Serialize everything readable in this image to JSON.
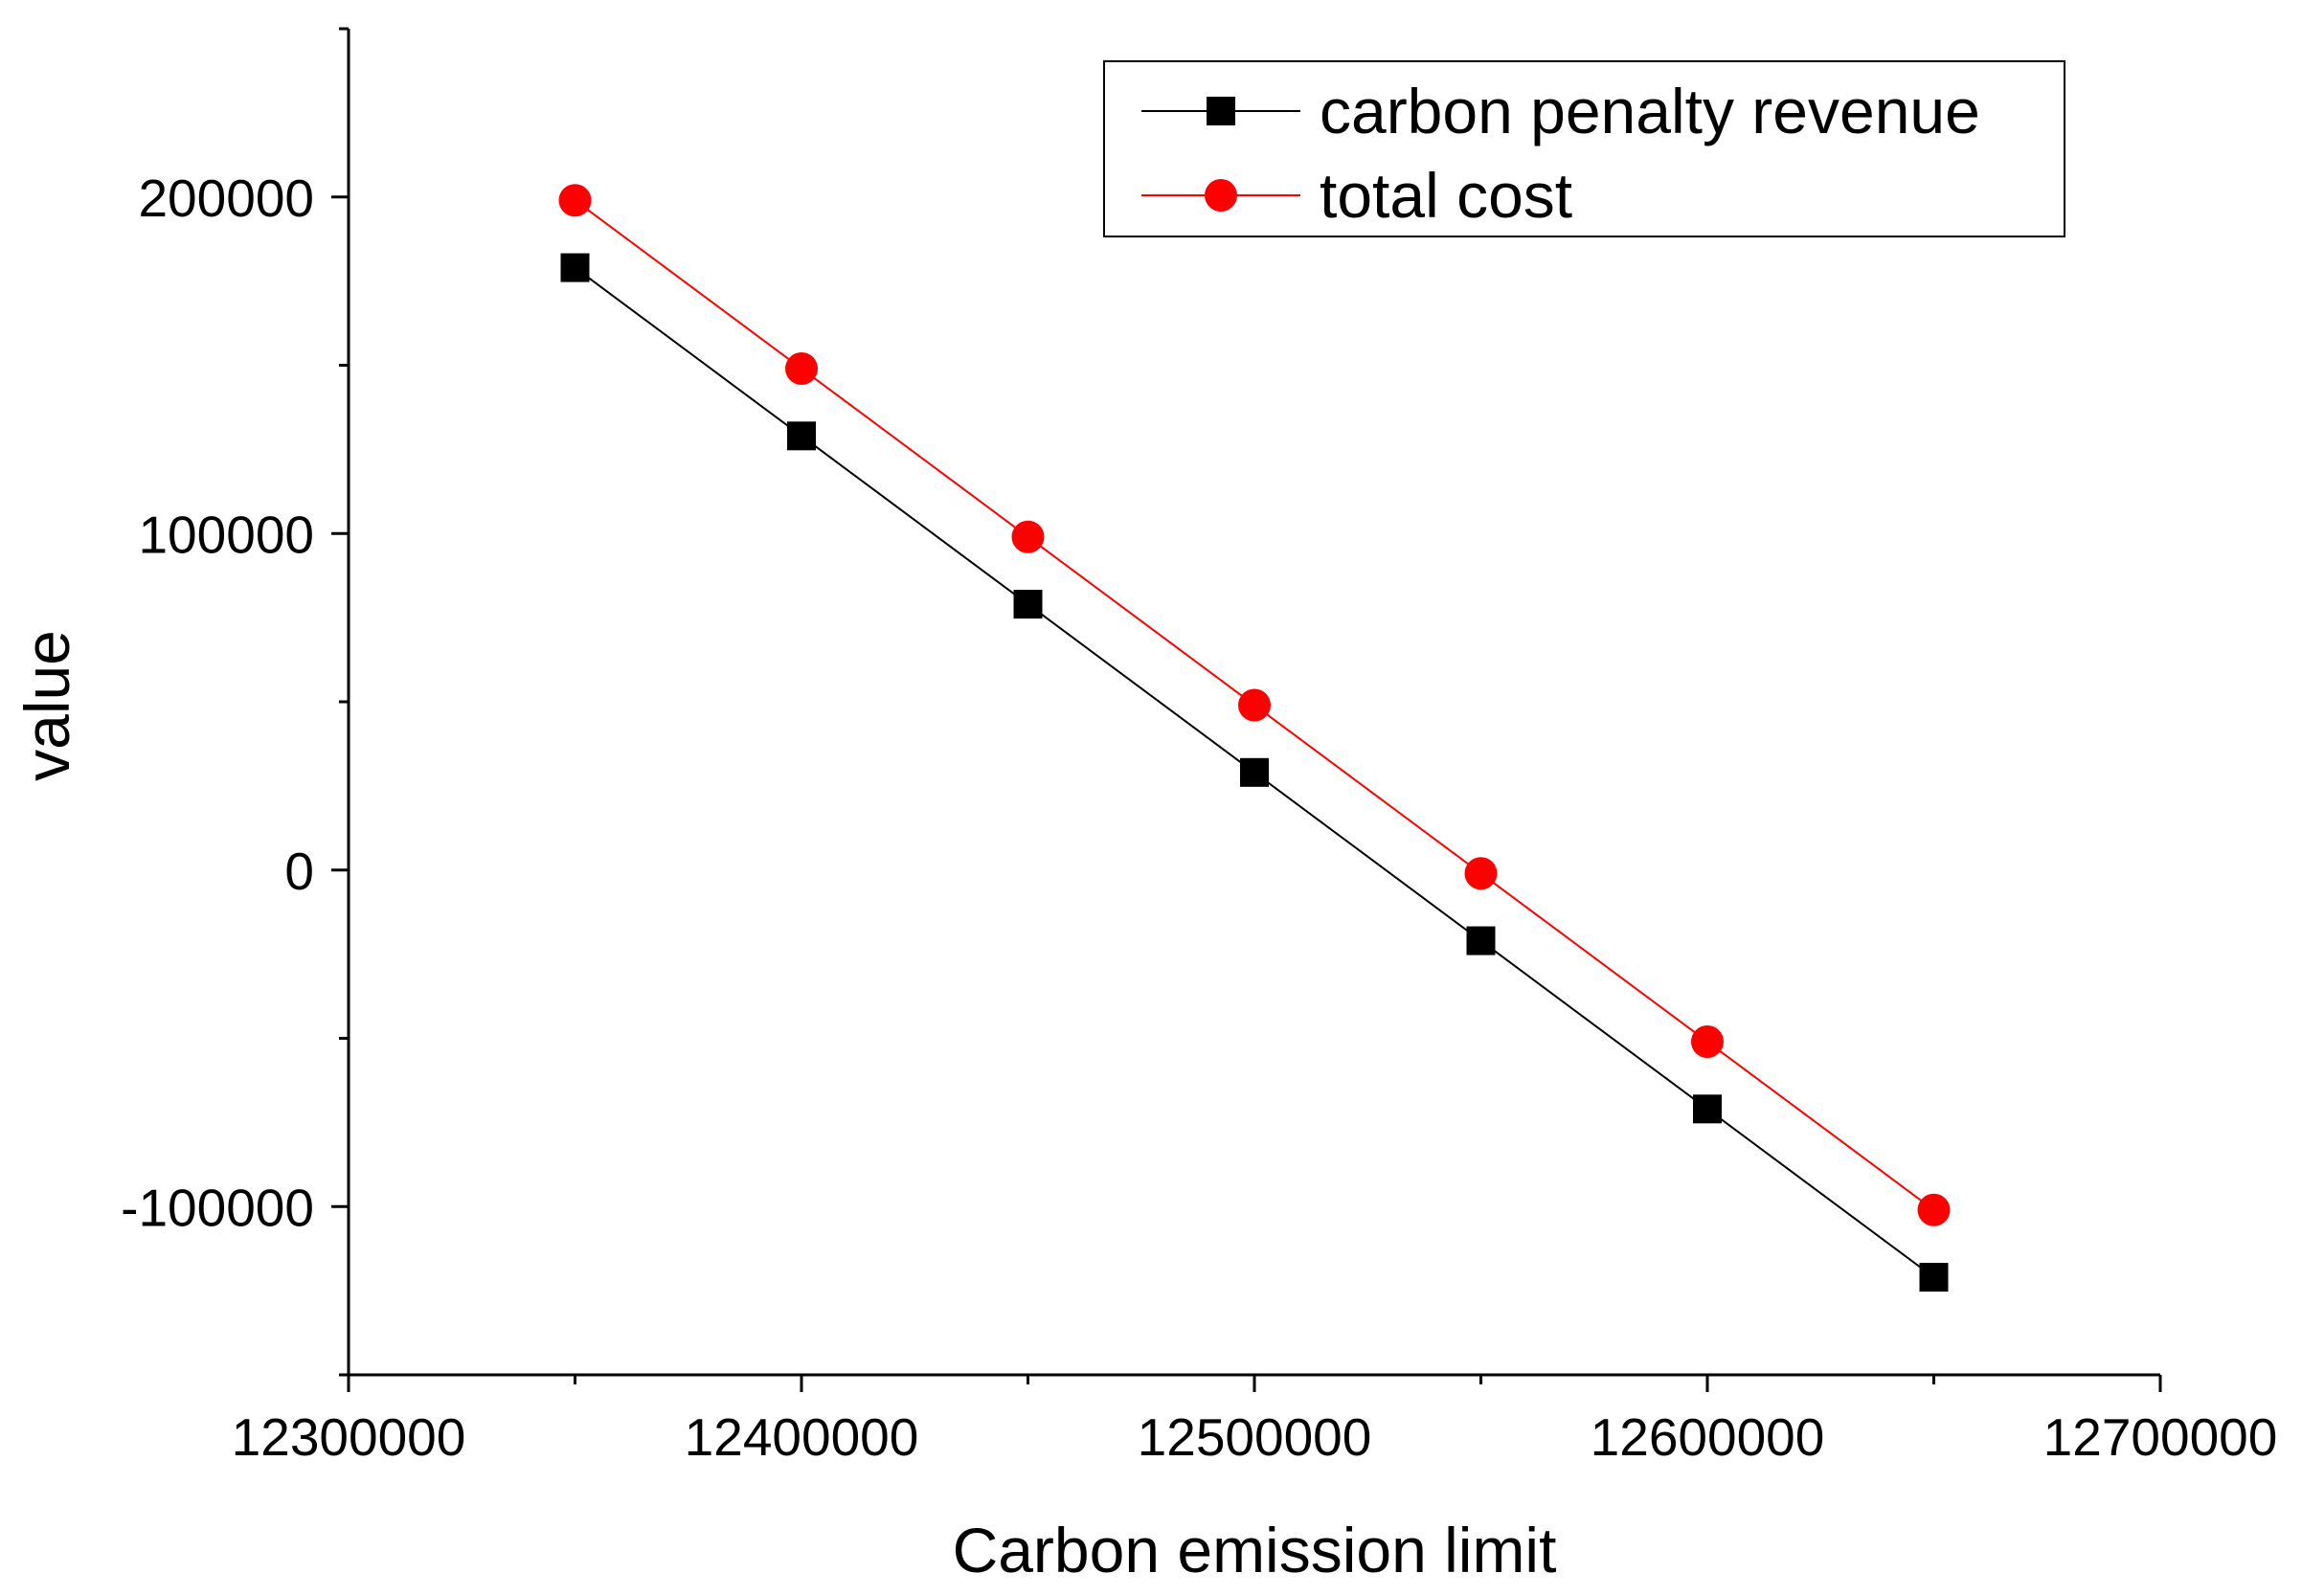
{
  "chart_data": {
    "type": "line",
    "title": "",
    "xlabel": "Carbon emission limit",
    "ylabel": "value",
    "xlim": [
      12300000,
      12700000
    ],
    "ylim": [
      -150000,
      250000
    ],
    "grid": false,
    "legend_position": "top-right",
    "x_ticks": [
      12300000,
      12400000,
      12500000,
      12600000,
      12700000
    ],
    "x_tick_labels": [
      "12300000",
      "12400000",
      "12500000",
      "12600000",
      "12700000"
    ],
    "x_minor_ticks": [
      12350000,
      12450000,
      12550000,
      12650000
    ],
    "y_ticks": [
      -100000,
      0,
      100000,
      200000
    ],
    "y_tick_labels": [
      "-100000",
      "0",
      "100000",
      "200000"
    ],
    "y_minor_ticks": [
      -150000,
      -50000,
      50000,
      150000,
      250000
    ],
    "x": [
      12350000,
      12400000,
      12450000,
      12500000,
      12550000,
      12600000,
      12650000
    ],
    "series": [
      {
        "name": "carbon penalty revenue",
        "color": "#000000",
        "marker": "square",
        "values": [
          179000,
          129000,
          79000,
          29000,
          -21000,
          -71000,
          -121000
        ]
      },
      {
        "name": "total cost",
        "color": "#ff0000",
        "marker": "circle",
        "values": [
          199000,
          149000,
          99000,
          49000,
          -1000,
          -51000,
          -101000
        ]
      }
    ]
  }
}
